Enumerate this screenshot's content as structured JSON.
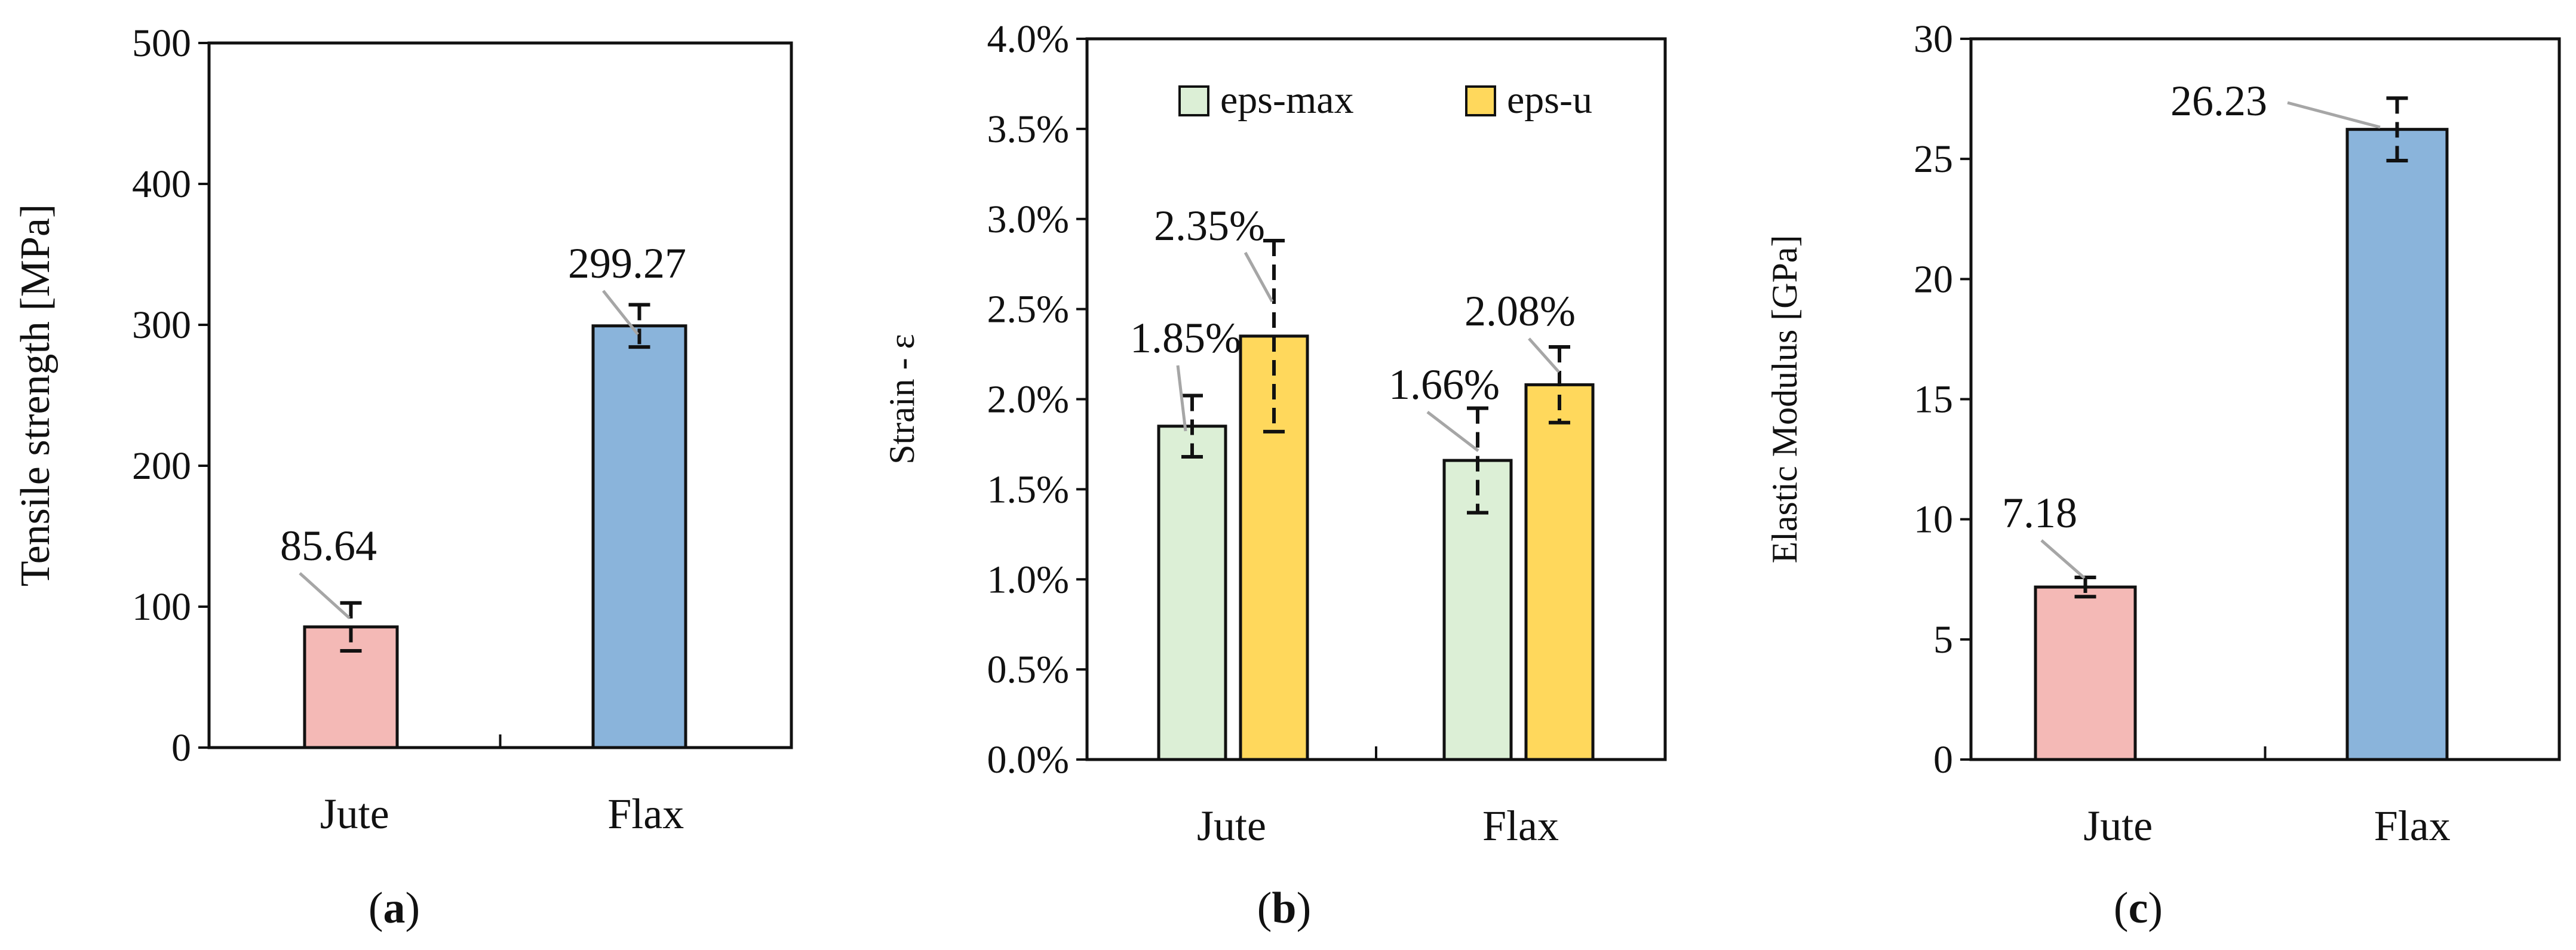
{
  "chart_data": [
    {
      "type": "bar",
      "panel": "a",
      "title": "",
      "xlabel": "",
      "ylabel": "Tensile strength [MPa]",
      "ylim": [
        0,
        500
      ],
      "yticks": [
        "0",
        "100",
        "200",
        "300",
        "400",
        "500"
      ],
      "categories": [
        "Jute",
        "Flax"
      ],
      "series": [
        {
          "name": "Tensile strength",
          "values": [
            85.64,
            299.27
          ],
          "errors": [
            17,
            15
          ],
          "colors": [
            "#f4b9b6",
            "#8ab4db"
          ]
        }
      ],
      "data_labels": [
        "85.64",
        "299.27"
      ],
      "caption": {
        "open": "(",
        "letter": "a",
        "close": ")"
      }
    },
    {
      "type": "bar",
      "panel": "b",
      "title": "",
      "xlabel": "",
      "ylabel": "Strain - ε",
      "ylim": [
        0,
        4.0
      ],
      "yticks": [
        "0.0%",
        "0.5%",
        "1.0%",
        "1.5%",
        "2.0%",
        "2.5%",
        "3.0%",
        "3.5%",
        "4.0%"
      ],
      "categories": [
        "Jute",
        "Flax"
      ],
      "series": [
        {
          "name": "eps-max",
          "values": [
            1.85,
            1.66
          ],
          "errors": [
            0.17,
            0.29
          ],
          "color": "#dcefd6"
        },
        {
          "name": "eps-u",
          "values": [
            2.35,
            2.08
          ],
          "errors": [
            0.53,
            0.21
          ],
          "color": "#ffd85c"
        }
      ],
      "data_labels": [
        [
          "1.85%",
          "1.66%"
        ],
        [
          "2.35%",
          "2.08%"
        ]
      ],
      "legend": {
        "position": "top",
        "entries": [
          "eps-max",
          "eps-u"
        ]
      },
      "caption": {
        "open": "(",
        "letter": "b",
        "close": ")"
      }
    },
    {
      "type": "bar",
      "panel": "c",
      "title": "",
      "xlabel": "",
      "ylabel": "Elastic Modulus [GPa]",
      "ylim": [
        0,
        30
      ],
      "yticks": [
        "0",
        "5",
        "10",
        "15",
        "20",
        "25",
        "30"
      ],
      "categories": [
        "Jute",
        "Flax"
      ],
      "series": [
        {
          "name": "Elastic Modulus",
          "values": [
            7.18,
            26.23
          ],
          "errors": [
            0.4,
            1.3
          ],
          "colors": [
            "#f4b9b6",
            "#8ab4db"
          ]
        }
      ],
      "data_labels": [
        "7.18",
        "26.23"
      ],
      "caption": {
        "open": "(",
        "letter": "c",
        "close": ")"
      }
    }
  ]
}
